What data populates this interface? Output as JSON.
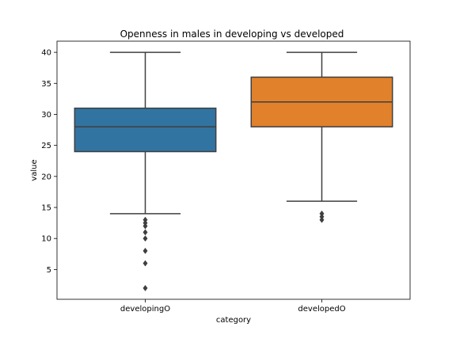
{
  "chart_data": {
    "type": "box",
    "title": "Openness in males in developing vs developed",
    "xlabel": "category",
    "ylabel": "value",
    "ylim": [
      0.2,
      41.8
    ],
    "yticks": [
      5,
      10,
      15,
      20,
      25,
      30,
      35,
      40
    ],
    "categories": [
      "developingO",
      "developedO"
    ],
    "colors": [
      "#3274a1",
      "#e1812c"
    ],
    "line_color": "#3f3f3f",
    "boxes": [
      {
        "category": "developingO",
        "whisker_low": 14,
        "q1": 24,
        "median": 28,
        "q3": 31,
        "whisker_high": 40,
        "outliers": [
          13,
          12.5,
          12,
          11,
          10,
          8,
          6,
          2
        ]
      },
      {
        "category": "developedO",
        "whisker_low": 16,
        "q1": 28,
        "median": 32,
        "q3": 36,
        "whisker_high": 40,
        "outliers": [
          14,
          13.5,
          13
        ]
      }
    ],
    "grid": false,
    "legend": "none"
  }
}
